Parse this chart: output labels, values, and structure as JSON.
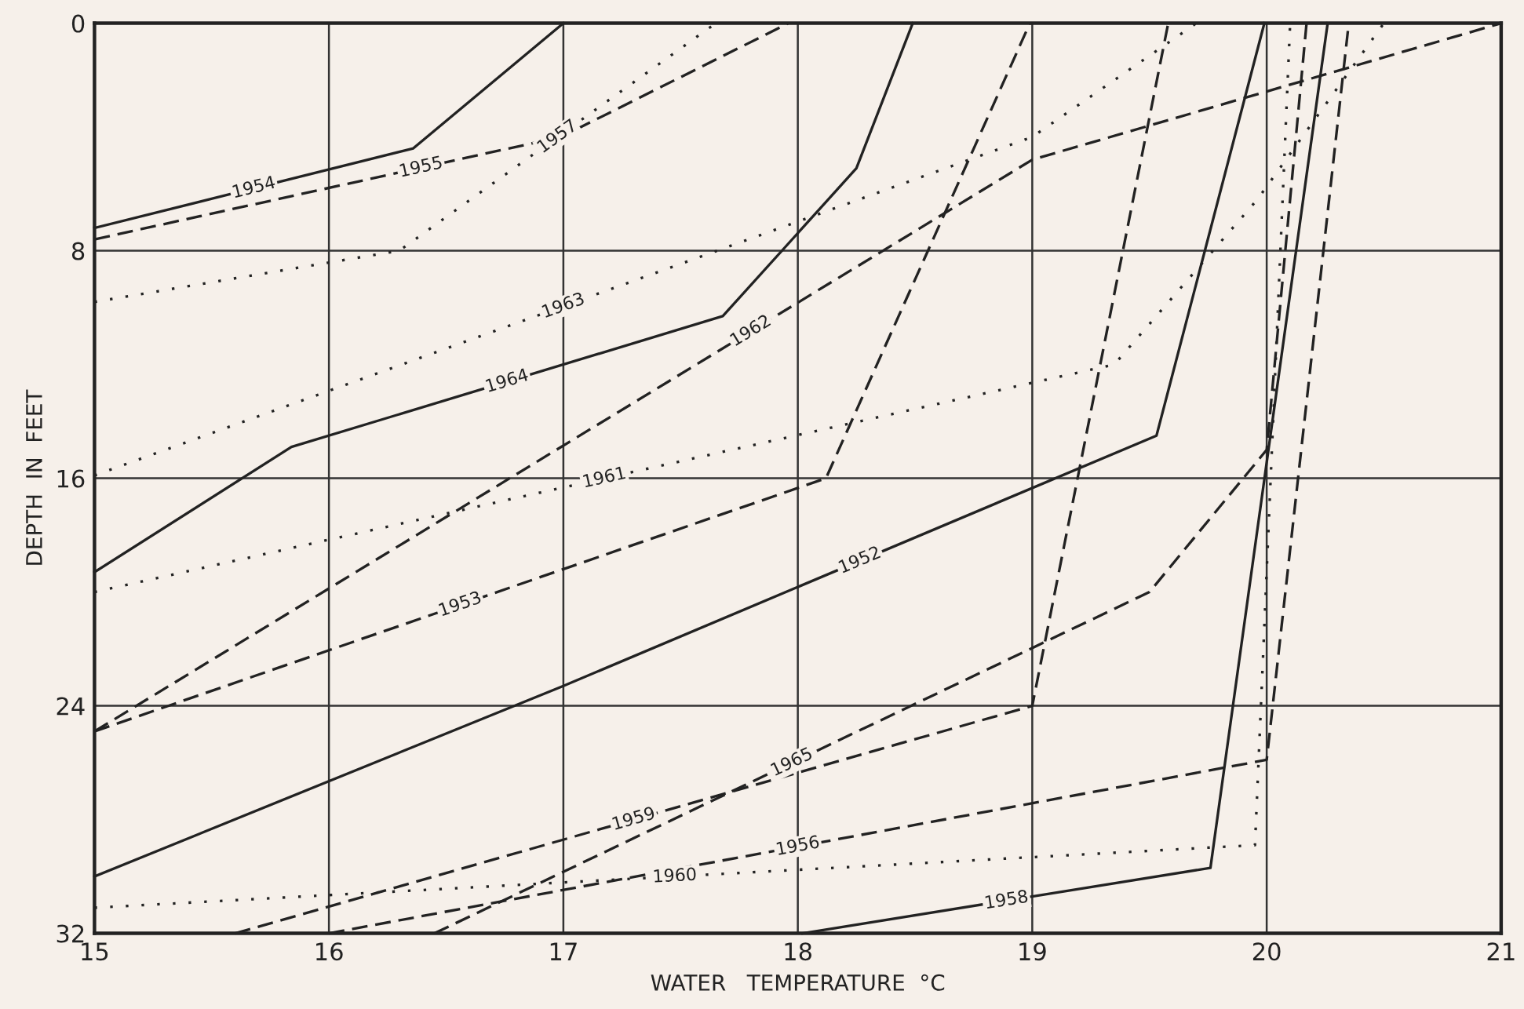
{
  "chart_data": {
    "type": "line",
    "xlabel": "WATER   TEMPERATURE  °C",
    "ylabel": "DEPTH  IN  FEET",
    "xlim": [
      15,
      21
    ],
    "xticks": [
      15,
      16,
      17,
      18,
      19,
      20,
      21
    ],
    "ylim": [
      32,
      0
    ],
    "yticks": [
      0,
      8,
      16,
      24,
      32
    ],
    "grid": true,
    "legend": false,
    "marker": "none",
    "series": [
      {
        "name": "1952",
        "color": "#222222",
        "line_style": "solid",
        "x": [
          15,
          17,
          19.53,
          19.99
        ],
        "values": [
          30.0,
          23.3,
          14.5,
          0
        ]
      },
      {
        "name": "1953",
        "color": "#222222",
        "line_style": "dashed",
        "x": [
          15,
          18.12,
          18.99
        ],
        "values": [
          24.9,
          16.0,
          0
        ]
      },
      {
        "name": "1954",
        "color": "#222222",
        "line_style": "solid",
        "x": [
          15,
          16.36,
          17
        ],
        "values": [
          7.2,
          4.4,
          0
        ]
      },
      {
        "name": "1955",
        "color": "#222222",
        "line_style": "dashed",
        "x": [
          15,
          16.99,
          17.96
        ],
        "values": [
          7.6,
          4.0,
          0
        ]
      },
      {
        "name": "1956",
        "color": "#222222",
        "line_style": "dashed",
        "x": [
          16,
          20,
          20.35
        ],
        "values": [
          32,
          25.9,
          0
        ]
      },
      {
        "name": "1957",
        "color": "#222222",
        "line_style": "dotted",
        "x": [
          15,
          16.3,
          17.65
        ],
        "values": [
          9.8,
          8.0,
          0
        ]
      },
      {
        "name": "1958",
        "color": "#222222",
        "line_style": "solid",
        "x": [
          18.02,
          19.76,
          20.26
        ],
        "values": [
          32,
          29.7,
          0
        ]
      },
      {
        "name": "1959",
        "color": "#222222",
        "line_style": "dashed",
        "x": [
          15.6,
          19,
          19.58
        ],
        "values": [
          32,
          24.0,
          0
        ]
      },
      {
        "name": "1960",
        "color": "#222222",
        "line_style": "dotted",
        "x": [
          15,
          19.95,
          20.1
        ],
        "values": [
          31.1,
          28.9,
          0
        ]
      },
      {
        "name": "1961",
        "color": "#222222",
        "line_style": "dotted",
        "x": [
          15,
          19.35,
          19.96,
          20.5
        ],
        "values": [
          20.0,
          12.0,
          6.2,
          0
        ]
      },
      {
        "name": "1962",
        "color": "#222222",
        "line_style": "dashed",
        "x": [
          15,
          19,
          21
        ],
        "values": [
          24.9,
          4.8,
          0
        ]
      },
      {
        "name": "1963",
        "color": "#222222",
        "line_style": "dotted",
        "x": [
          15,
          19,
          19.7
        ],
        "values": [
          15.9,
          4.0,
          0
        ]
      },
      {
        "name": "1964",
        "color": "#222222",
        "line_style": "solid",
        "x": [
          15,
          15.84,
          17.68,
          18.25,
          18.49
        ],
        "values": [
          19.3,
          14.9,
          10.3,
          5.1,
          0
        ]
      },
      {
        "name": "1965",
        "color": "#222222",
        "line_style": "dashed",
        "x": [
          16.45,
          19.5,
          20.0,
          20.17
        ],
        "values": [
          32,
          20.0,
          15.0,
          0
        ]
      }
    ]
  }
}
